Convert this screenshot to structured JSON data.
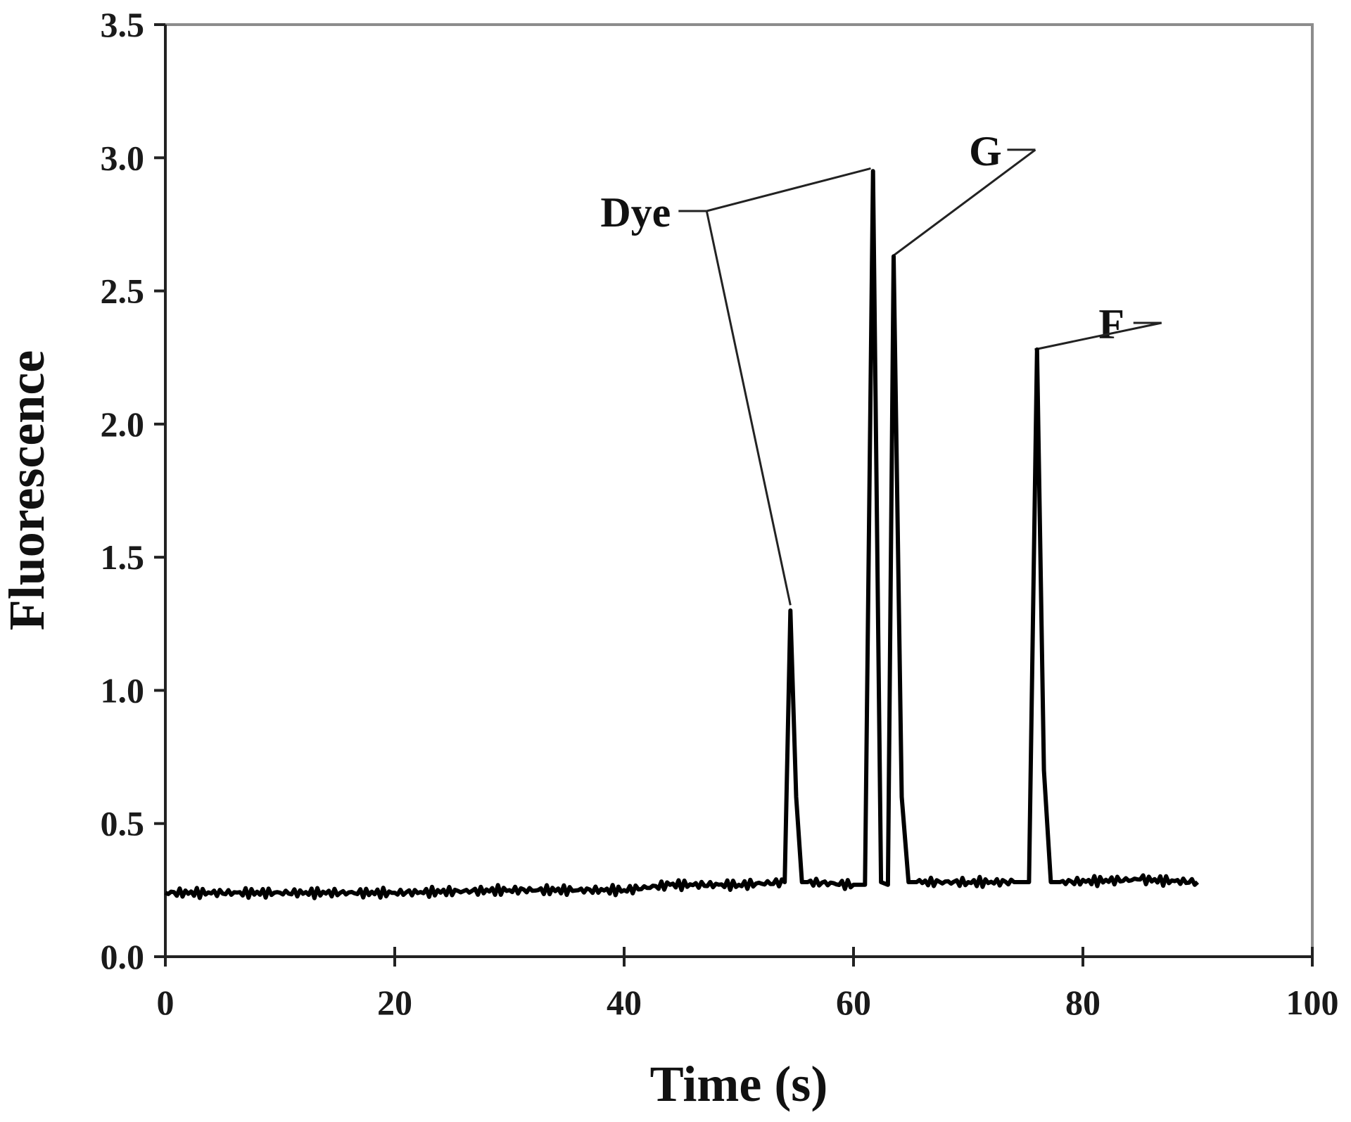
{
  "chart_data": {
    "type": "line",
    "xlabel": "Time (s)",
    "ylabel": "Fluorescence",
    "xlim": [
      0,
      100
    ],
    "ylim": [
      0,
      3.5
    ],
    "x_ticks": [
      "0",
      "20",
      "40",
      "60",
      "80",
      "100"
    ],
    "y_ticks": [
      "0.0",
      "0.5",
      "1.0",
      "1.5",
      "2.0",
      "2.5",
      "3.0",
      "3.5"
    ],
    "grid": false,
    "legend": "none",
    "line_color": "#000000",
    "series": [
      {
        "x": [
          0,
          10,
          20,
          30,
          40,
          44,
          50,
          54,
          54.5,
          55,
          55.5,
          56,
          60,
          61,
          61.7,
          62.4,
          63,
          63.5,
          64.2,
          64.8,
          65.5,
          70,
          74,
          75.3,
          76,
          76.6,
          77.2,
          78,
          85,
          90
        ],
        "y": [
          0.24,
          0.24,
          0.24,
          0.25,
          0.25,
          0.27,
          0.27,
          0.28,
          1.3,
          0.6,
          0.28,
          0.28,
          0.27,
          0.27,
          2.95,
          0.28,
          0.27,
          2.63,
          0.6,
          0.28,
          0.28,
          0.28,
          0.28,
          0.28,
          2.28,
          0.7,
          0.28,
          0.28,
          0.29,
          0.28
        ]
      }
    ],
    "annotations": [
      {
        "text": "Dye",
        "x": 41,
        "y": 2.8,
        "targets": [
          [
            54.5,
            1.32
          ],
          [
            61.5,
            2.96
          ]
        ]
      },
      {
        "text": "G",
        "x": 71.5,
        "y": 3.03,
        "targets": [
          [
            63.4,
            2.63
          ]
        ]
      },
      {
        "text": "F",
        "x": 82.5,
        "y": 2.38,
        "targets": [
          [
            75.8,
            2.28
          ]
        ]
      }
    ]
  }
}
